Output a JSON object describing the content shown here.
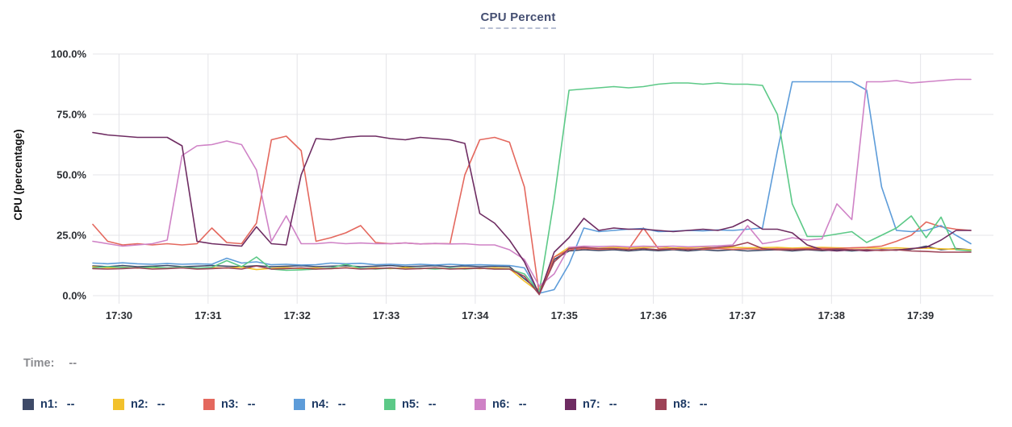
{
  "title": "CPU Percent",
  "time_row": {
    "label": "Time:",
    "value": "--"
  },
  "legend": {
    "items": [
      {
        "label": "n1:",
        "value": "--",
        "color": "#3e4a68"
      },
      {
        "label": "n2:",
        "value": "--",
        "color": "#f2c12c"
      },
      {
        "label": "n3:",
        "value": "--",
        "color": "#e4685e"
      },
      {
        "label": "n4:",
        "value": "--",
        "color": "#5d9cd9"
      },
      {
        "label": "n5:",
        "value": "--",
        "color": "#5cc987"
      },
      {
        "label": "n6:",
        "value": "--",
        "color": "#cf82c6"
      },
      {
        "label": "n7:",
        "value": "--",
        "color": "#6e2c62"
      },
      {
        "label": "n8:",
        "value": "--",
        "color": "#9d4357"
      }
    ]
  },
  "chart_data": {
    "type": "line",
    "title": "CPU Percent",
    "xlabel": "",
    "ylabel": "CPU (percentage)",
    "ylim": [
      0,
      100
    ],
    "grid": true,
    "legend_position": "bottom",
    "y_ticks": [
      {
        "value": 0,
        "label": "0.0%"
      },
      {
        "value": 25,
        "label": "25.0%"
      },
      {
        "value": 50,
        "label": "50.0%"
      },
      {
        "value": 75,
        "label": "75.0%"
      },
      {
        "value": 100,
        "label": "100.0%"
      }
    ],
    "x_ticks": [
      "17:30",
      "17:31",
      "17:32",
      "17:33",
      "17:34",
      "17:35",
      "17:36",
      "17:37",
      "17:38",
      "17:39"
    ],
    "x_range_minutes_from_1730": [
      -0.3,
      9.55
    ],
    "points_per_series": 60,
    "series": [
      {
        "name": "n1",
        "color": "#3e4a68",
        "values": [
          12.3,
          12,
          12.5,
          12,
          12.2,
          12.5,
          12,
          12.2,
          12.5,
          12.2,
          12,
          12.4,
          12,
          12.2,
          12.4,
          12,
          12.2,
          12.4,
          12,
          12.2,
          12.5,
          12,
          12.2,
          12.4,
          12,
          12.3,
          12,
          12.2,
          12,
          7,
          2,
          15,
          18.5,
          19,
          18.7,
          19,
          18.5,
          19,
          18.6,
          19,
          18.5,
          19,
          18.6,
          19,
          18.5,
          18.8,
          19,
          18.5,
          19,
          18.6,
          19,
          18.5,
          19,
          18.8,
          19,
          19.2,
          20.5,
          19,
          19.5,
          19
        ]
      },
      {
        "name": "n2",
        "color": "#f2c12c",
        "values": [
          12,
          11.5,
          11.8,
          11.4,
          11.7,
          11.4,
          11.7,
          11.3,
          11.6,
          11.4,
          11.8,
          10.8,
          11.3,
          11.6,
          11.2,
          11.5,
          11.2,
          11.6,
          11.2,
          11.5,
          11.2,
          11.6,
          11.2,
          11.5,
          11.2,
          11.5,
          11.2,
          11.5,
          11.2,
          6,
          1.5,
          16,
          20,
          19.8,
          19.6,
          20,
          19.7,
          19.9,
          20.2,
          19.7,
          19.9,
          20.1,
          19.7,
          20,
          19.8,
          19.9,
          20,
          19.7,
          19.9,
          20,
          19.8,
          19.7,
          19.8,
          19.6,
          19.8,
          19.5,
          19.7,
          19.4,
          19.2,
          19
        ]
      },
      {
        "name": "n3",
        "color": "#e4685e",
        "values": [
          29.5,
          22.5,
          21,
          21.5,
          21,
          21.5,
          21,
          21.5,
          28,
          22,
          21.5,
          30,
          64.5,
          66,
          60,
          22.5,
          24,
          26,
          29,
          22,
          21.5,
          21.8,
          21.4,
          21.6,
          21.5,
          50,
          64.5,
          65.5,
          63.5,
          45,
          0.5,
          16,
          19,
          19.5,
          19.2,
          19.4,
          19.2,
          28,
          19.5,
          19.2,
          19.4,
          19.2,
          19.5,
          19.2,
          19.4,
          19.2,
          19.5,
          19.3,
          19.5,
          19.6,
          19.5,
          19.8,
          20,
          20.5,
          22.5,
          25,
          30.5,
          28.5,
          27.5,
          27
        ]
      },
      {
        "name": "n4",
        "color": "#5d9cd9",
        "values": [
          13.5,
          13.2,
          13.6,
          13.2,
          13,
          13.3,
          13,
          13.2,
          13,
          15.5,
          13.5,
          14,
          12.8,
          13,
          12.7,
          12.8,
          13.5,
          13.2,
          13.4,
          12.8,
          13,
          12.7,
          13,
          12.7,
          13,
          12.7,
          12.8,
          12.6,
          12.5,
          11.5,
          1,
          2.5,
          13,
          28,
          26.5,
          27,
          27.5,
          27.8,
          26.5,
          26.7,
          27,
          26.8,
          27.2,
          27,
          27.5,
          28,
          60,
          88.5,
          88.5,
          88.5,
          88.5,
          88.5,
          85,
          45,
          27,
          26.5,
          27,
          29,
          25,
          21.5
        ]
      },
      {
        "name": "n5",
        "color": "#5cc987",
        "values": [
          11.5,
          12,
          11.7,
          11.5,
          11.8,
          11.5,
          11.8,
          11.4,
          11.7,
          14.5,
          12,
          16,
          11,
          10.5,
          10.7,
          11,
          11.5,
          13,
          11.4,
          11,
          11.4,
          11,
          11.4,
          11,
          11.4,
          11,
          11.4,
          11,
          11,
          9,
          1.5,
          40,
          85,
          85.5,
          86,
          86.5,
          86,
          86.5,
          87.5,
          88,
          88,
          87.5,
          88,
          87.5,
          87.5,
          87,
          75,
          38,
          24.5,
          24.5,
          25.5,
          26.5,
          22,
          25,
          28,
          33,
          24,
          32.5,
          19,
          18.5
        ]
      },
      {
        "name": "n6",
        "color": "#cf82c6",
        "values": [
          22.5,
          21.5,
          20.5,
          21,
          21.5,
          23,
          58,
          62,
          62.5,
          64,
          62.5,
          52,
          22.5,
          33,
          21.5,
          21.5,
          22,
          21.5,
          21.8,
          21.5,
          21.5,
          21.8,
          21.4,
          21.6,
          21.4,
          21.5,
          21,
          21,
          19,
          15,
          4,
          9,
          20,
          20.5,
          20.3,
          20.5,
          20.2,
          20.5,
          20.3,
          20.5,
          20.2,
          20.4,
          20.6,
          21,
          29,
          21.5,
          22.5,
          24,
          23,
          23.5,
          38,
          31.5,
          88.5,
          88.5,
          89,
          88,
          88.5,
          89,
          89.5,
          89.5
        ]
      },
      {
        "name": "n7",
        "color": "#6e2c62",
        "values": [
          67.5,
          66.5,
          66,
          65.5,
          65.5,
          65.5,
          62,
          22.5,
          21.5,
          21,
          20.5,
          28.5,
          21.5,
          21,
          50,
          65,
          64.5,
          65.5,
          66,
          66,
          65,
          64.5,
          65.5,
          65,
          64.5,
          63,
          34,
          30,
          23,
          14,
          0.5,
          18,
          24,
          32,
          27,
          28,
          27.5,
          27.5,
          27,
          26.5,
          27,
          27.5,
          27,
          28.5,
          31.5,
          27.5,
          27.5,
          26,
          21,
          19,
          18.5,
          19,
          18.5,
          19,
          18.8,
          19.5,
          20,
          23,
          27,
          27
        ]
      },
      {
        "name": "n8",
        "color": "#9d4357",
        "values": [
          11.2,
          11,
          11.2,
          11.5,
          11,
          11.2,
          11.5,
          11,
          11.2,
          11.5,
          11,
          12.3,
          11,
          11.2,
          11.5,
          11,
          11.2,
          11.5,
          11,
          11.2,
          11.5,
          11,
          11.2,
          11.5,
          11,
          11.2,
          11.4,
          11,
          11,
          8,
          0.5,
          14,
          19.5,
          20,
          19.5,
          19.5,
          19,
          19.5,
          19,
          19.5,
          19,
          19.5,
          20,
          20.5,
          22,
          19.5,
          19,
          19,
          19.2,
          19,
          19.3,
          19,
          19,
          18.7,
          19,
          18.5,
          18.3,
          18,
          18,
          18
        ]
      }
    ]
  },
  "style_colors": {
    "gridline": "#e4e4e8",
    "tick_label": "#2b2e33",
    "axis_title": "#111111",
    "title_text": "#454f72",
    "title_underline": "#b9c0d4",
    "time_label": "#8b8c90",
    "legend_text": "#1e3a64"
  }
}
